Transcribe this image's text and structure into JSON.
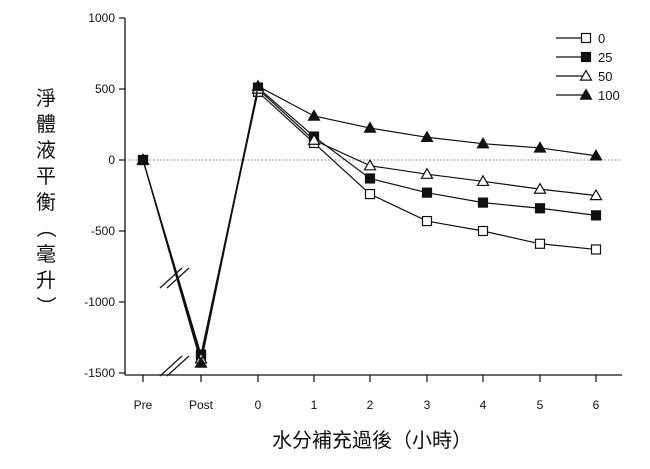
{
  "chart_data": {
    "type": "line",
    "categories": [
      "Pre",
      "Post",
      "0",
      "1",
      "2",
      "3",
      "4",
      "5",
      "6"
    ],
    "xlabel": "水分補充過後（小時）",
    "ylabel": "淨體液平衡（毫升）",
    "ylim": [
      -1500,
      1000
    ],
    "yticks": [
      1000,
      500,
      0,
      -500,
      -1000,
      -1500
    ],
    "zero_reference_line": true,
    "axis_breaks": true,
    "legend_position": "top-right",
    "series": [
      {
        "name": "0",
        "marker": "open-square",
        "values": [
          0,
          -1380,
          480,
          120,
          -240,
          -430,
          -500,
          -590,
          -630
        ]
      },
      {
        "name": "25",
        "marker": "filled-square",
        "values": [
          0,
          -1370,
          510,
          165,
          -130,
          -230,
          -300,
          -340,
          -390
        ]
      },
      {
        "name": "50",
        "marker": "open-triangle",
        "values": [
          0,
          -1400,
          500,
          140,
          -40,
          -100,
          -150,
          -205,
          -250
        ]
      },
      {
        "name": "100",
        "marker": "filled-triangle",
        "values": [
          0,
          -1430,
          520,
          310,
          225,
          160,
          115,
          85,
          30
        ]
      }
    ]
  }
}
